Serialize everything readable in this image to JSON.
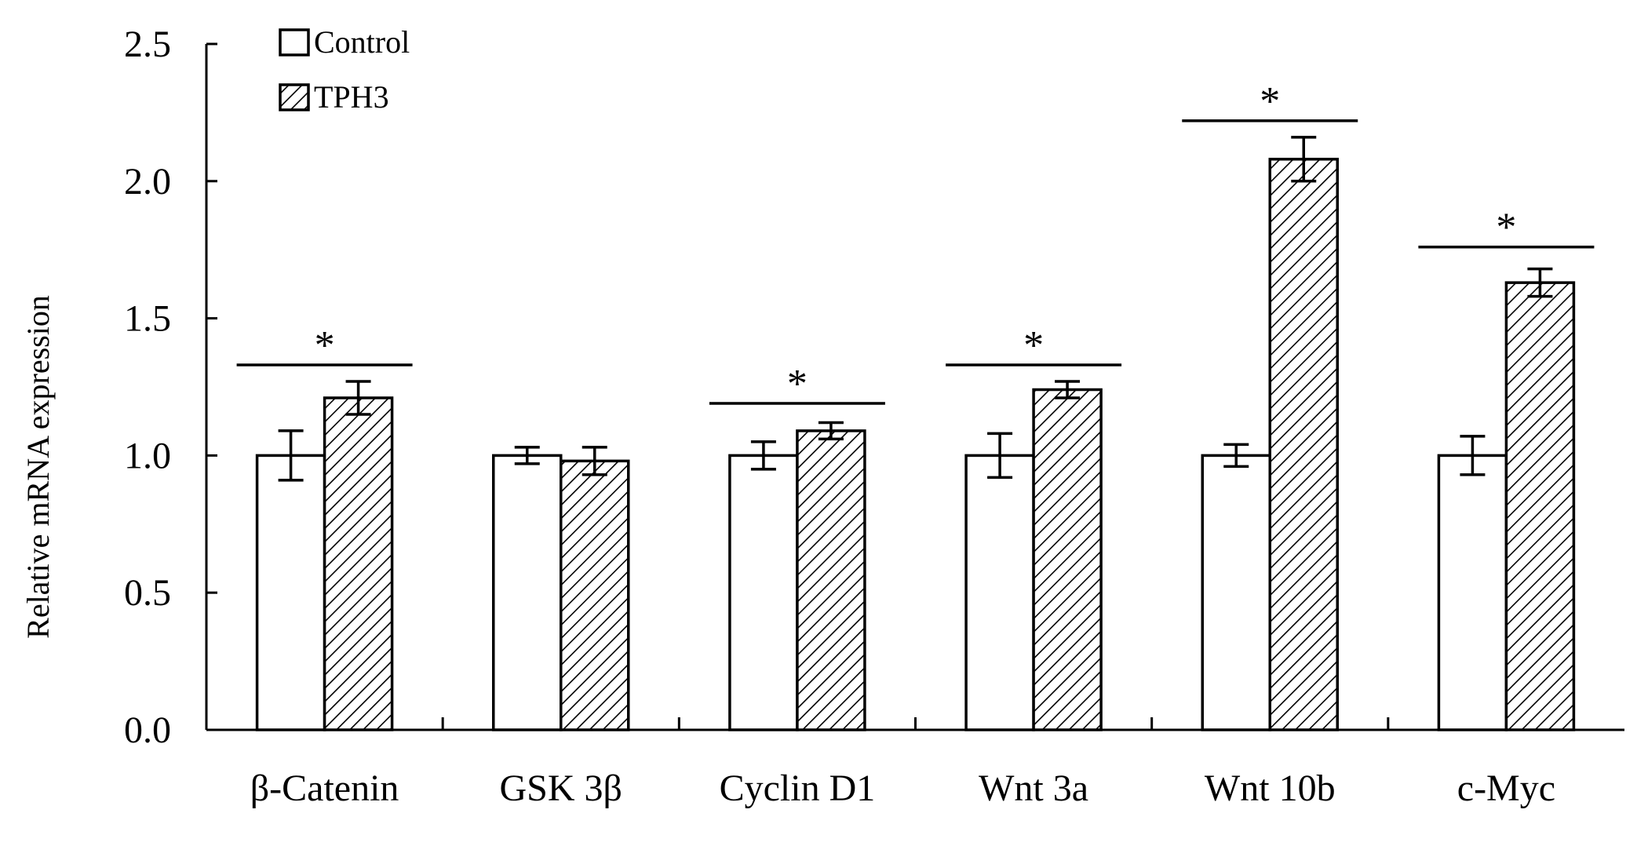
{
  "chart_data": {
    "type": "bar",
    "categories": [
      "β-Catenin",
      "GSK 3β",
      "Cyclin D1",
      "Wnt 3a",
      "Wnt 10b",
      "c-Myc"
    ],
    "series": [
      {
        "name": "Control",
        "values": [
          1.0,
          1.0,
          1.0,
          1.0,
          1.0,
          1.0
        ],
        "errors": [
          0.09,
          0.03,
          0.05,
          0.08,
          0.04,
          0.07
        ],
        "fill": "#ffffff",
        "pattern": "none"
      },
      {
        "name": "TPH3",
        "values": [
          1.21,
          0.98,
          1.09,
          1.24,
          2.08,
          1.63
        ],
        "errors": [
          0.06,
          0.05,
          0.03,
          0.03,
          0.08,
          0.05
        ],
        "fill": "#ffffff",
        "pattern": "diagonal-hatch"
      }
    ],
    "significance": [
      {
        "category": "β-Catenin",
        "label": "*",
        "level": 1.33
      },
      {
        "category": "Cyclin D1",
        "label": "*",
        "level": 1.19
      },
      {
        "category": "Wnt 3a",
        "label": "*",
        "level": 1.33
      },
      {
        "category": "Wnt 10b",
        "label": "*",
        "level": 2.22
      },
      {
        "category": "c-Myc",
        "label": "*",
        "level": 1.76
      }
    ],
    "ylabel": "Relative mRNA expression",
    "ylim": [
      0,
      2.5
    ],
    "yticks": [
      "0.0",
      "0.5",
      "1.0",
      "1.5",
      "2.0",
      "2.5"
    ],
    "ytick_values": [
      0,
      0.5,
      1.0,
      1.5,
      2.0,
      2.5
    ],
    "grid": false,
    "legend_position": "top-left",
    "colors": {
      "axis": "#000000",
      "bar_stroke": "#000000",
      "bar_fill": "#ffffff"
    }
  }
}
